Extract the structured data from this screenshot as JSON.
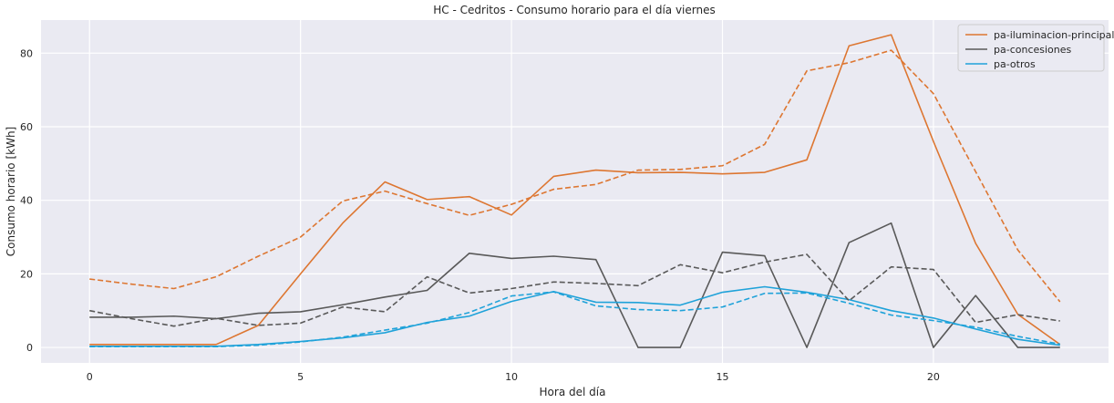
{
  "chart_data": {
    "type": "line",
    "title": "HC - Cedritos - Consumo horario para el día viernes",
    "xlabel": "Hora del día",
    "ylabel": "Consumo horario [kWh]",
    "xlim": [
      -1.15,
      24.15
    ],
    "ylim": [
      -4.2,
      89
    ],
    "xticks": [
      0,
      5,
      10,
      15,
      20
    ],
    "yticks": [
      0,
      20,
      40,
      60,
      80
    ],
    "grid": true,
    "legend_position": "top-right",
    "background": "#eaeaf2",
    "x": [
      0,
      1,
      2,
      3,
      4,
      5,
      6,
      7,
      8,
      9,
      10,
      11,
      12,
      13,
      14,
      15,
      16,
      17,
      18,
      19,
      20,
      21,
      22,
      23
    ],
    "series": [
      {
        "name": "pa-iluminacion-principal",
        "color": "#dd7631",
        "style": "solid",
        "legend": true,
        "values": [
          0.8,
          0.8,
          0.8,
          0.8,
          6.0,
          20.0,
          33.8,
          45.0,
          40.2,
          41.0,
          36.0,
          46.5,
          48.2,
          47.5,
          47.6,
          47.2,
          47.6,
          51.0,
          82.0,
          85.0,
          56.0,
          28.3,
          9.0,
          0.8
        ]
      },
      {
        "name": "pa-concesiones",
        "color": "#595959",
        "style": "solid",
        "legend": true,
        "values": [
          8.2,
          8.2,
          8.5,
          7.8,
          9.3,
          9.7,
          11.6,
          13.7,
          15.5,
          25.6,
          24.2,
          24.8,
          23.9,
          0.0,
          0.0,
          25.9,
          24.9,
          0.0,
          28.5,
          33.8,
          0.0,
          14.1,
          0.0,
          0.0
        ]
      },
      {
        "name": "pa-otros",
        "color": "#1fa2d9",
        "style": "solid",
        "legend": true,
        "values": [
          0.3,
          0.3,
          0.3,
          0.3,
          0.8,
          1.6,
          2.6,
          4.0,
          6.8,
          8.5,
          12.5,
          15.2,
          12.3,
          12.2,
          11.5,
          15.0,
          16.5,
          15.0,
          13.0,
          10.0,
          8.0,
          5.0,
          2.2,
          0.6
        ]
      },
      {
        "name": "",
        "color": "#dd7631",
        "style": "dashed",
        "legend": false,
        "values": [
          18.6,
          17.2,
          16.0,
          19.2,
          24.8,
          30.0,
          39.8,
          42.5,
          39.1,
          35.9,
          38.9,
          43.0,
          44.3,
          48.2,
          48.4,
          49.4,
          55.2,
          75.2,
          77.4,
          80.8,
          69.0,
          47.8,
          26.5,
          12.4
        ]
      },
      {
        "name": "",
        "color": "#595959",
        "style": "dashed",
        "legend": false,
        "values": [
          10.0,
          7.8,
          5.8,
          7.9,
          6.0,
          6.6,
          11.0,
          9.7,
          19.2,
          14.8,
          16.0,
          17.8,
          17.4,
          16.8,
          22.5,
          20.3,
          23.2,
          25.3,
          12.7,
          21.9,
          21.2,
          6.8,
          8.9,
          7.2
        ]
      },
      {
        "name": "",
        "color": "#1fa2d9",
        "style": "dashed",
        "legend": false,
        "values": [
          0.2,
          0.2,
          0.2,
          0.2,
          0.6,
          1.5,
          2.8,
          4.7,
          6.6,
          9.5,
          14.0,
          15.1,
          11.3,
          10.3,
          10.0,
          11.0,
          14.7,
          14.8,
          12.0,
          8.8,
          7.3,
          5.5,
          3.0,
          0.9
        ]
      }
    ]
  }
}
